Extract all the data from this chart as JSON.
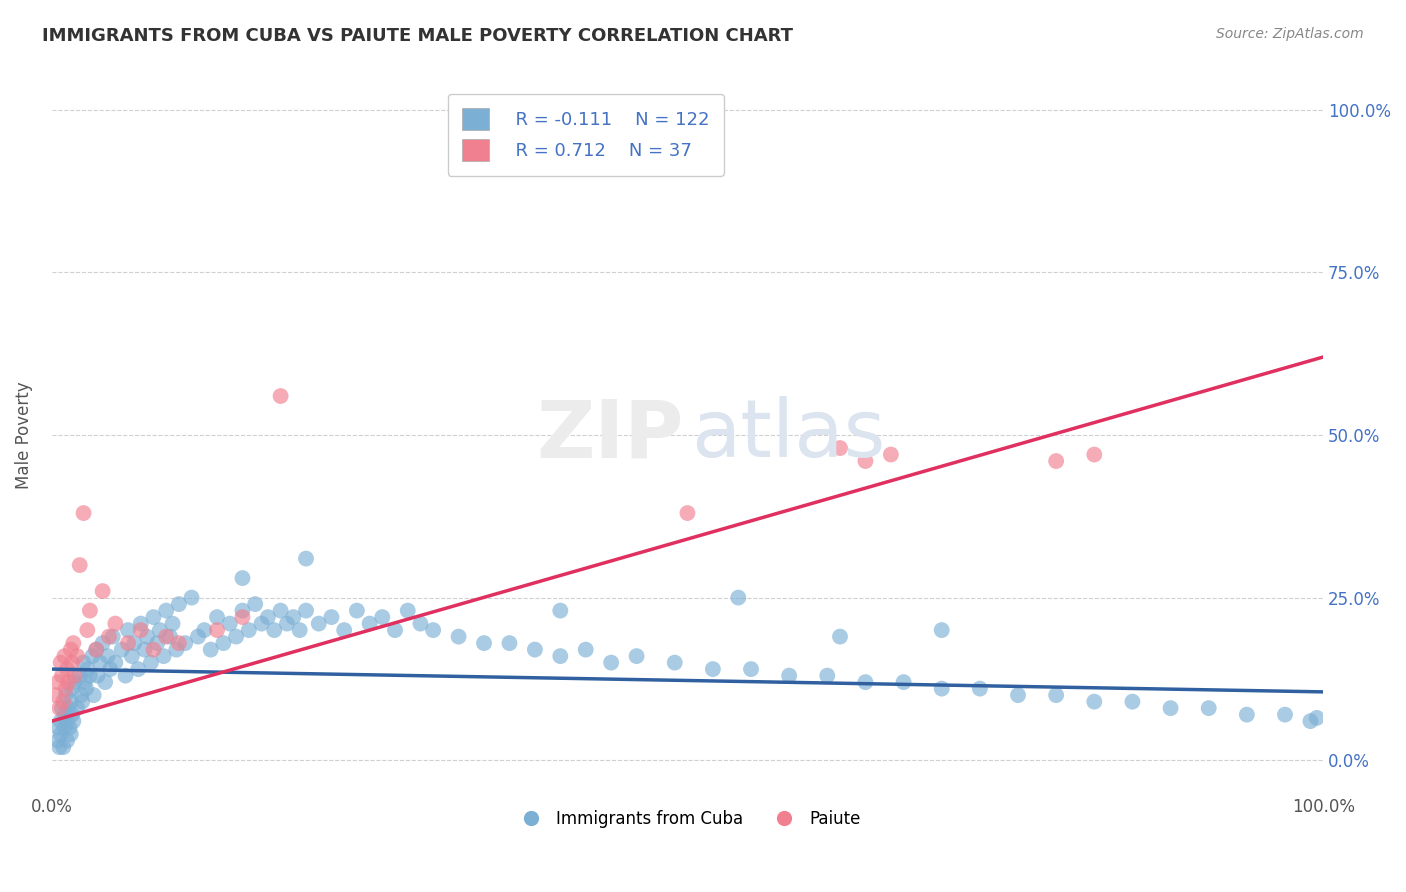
{
  "title": "IMMIGRANTS FROM CUBA VS PAIUTE MALE POVERTY CORRELATION CHART",
  "source": "Source: ZipAtlas.com",
  "ylabel": "Male Poverty",
  "xmin": 0.0,
  "xmax": 1.0,
  "ymin": -0.05,
  "ymax": 1.05,
  "ytick_positions": [
    0.0,
    0.25,
    0.5,
    0.75,
    1.0
  ],
  "ytick_labels": [
    "0.0%",
    "25.0%",
    "50.0%",
    "75.0%",
    "100.0%"
  ],
  "xtick_positions": [
    0.0,
    1.0
  ],
  "xtick_labels": [
    "0.0%",
    "100.0%"
  ],
  "blue_label": "Immigrants from Cuba",
  "pink_label": "Paiute",
  "blue_R": "-0.111",
  "blue_N": "122",
  "pink_R": "0.712",
  "pink_N": "37",
  "blue_color": "#7bafd4",
  "pink_color": "#f08090",
  "blue_line_color": "#3060a0",
  "pink_line_color": "#e03060",
  "grid_color": "#d0d0d0",
  "background_color": "#ffffff",
  "blue_scatter_x": [
    0.005,
    0.005,
    0.006,
    0.007,
    0.007,
    0.008,
    0.009,
    0.01,
    0.01,
    0.011,
    0.012,
    0.012,
    0.013,
    0.014,
    0.015,
    0.015,
    0.016,
    0.016,
    0.017,
    0.018,
    0.02,
    0.022,
    0.023,
    0.024,
    0.025,
    0.026,
    0.027,
    0.028,
    0.03,
    0.032,
    0.033,
    0.035,
    0.036,
    0.038,
    0.04,
    0.042,
    0.044,
    0.046,
    0.048,
    0.05,
    0.055,
    0.058,
    0.06,
    0.063,
    0.065,
    0.068,
    0.07,
    0.073,
    0.075,
    0.078,
    0.08,
    0.083,
    0.085,
    0.088,
    0.09,
    0.093,
    0.095,
    0.098,
    0.1,
    0.105,
    0.11,
    0.115,
    0.12,
    0.125,
    0.13,
    0.135,
    0.14,
    0.145,
    0.15,
    0.155,
    0.16,
    0.165,
    0.17,
    0.175,
    0.18,
    0.185,
    0.19,
    0.195,
    0.2,
    0.21,
    0.22,
    0.23,
    0.24,
    0.25,
    0.26,
    0.27,
    0.28,
    0.29,
    0.3,
    0.32,
    0.34,
    0.36,
    0.38,
    0.4,
    0.42,
    0.44,
    0.46,
    0.49,
    0.52,
    0.55,
    0.58,
    0.61,
    0.64,
    0.67,
    0.7,
    0.73,
    0.76,
    0.79,
    0.82,
    0.85,
    0.88,
    0.91,
    0.94,
    0.97,
    0.99,
    0.995,
    0.4,
    0.54,
    0.62,
    0.7,
    0.15,
    0.2
  ],
  "blue_scatter_y": [
    0.05,
    0.03,
    0.02,
    0.06,
    0.04,
    0.08,
    0.02,
    0.07,
    0.05,
    0.1,
    0.06,
    0.03,
    0.08,
    0.05,
    0.09,
    0.04,
    0.11,
    0.07,
    0.06,
    0.12,
    0.08,
    0.13,
    0.1,
    0.09,
    0.15,
    0.12,
    0.11,
    0.14,
    0.13,
    0.16,
    0.1,
    0.17,
    0.13,
    0.15,
    0.18,
    0.12,
    0.16,
    0.14,
    0.19,
    0.15,
    0.17,
    0.13,
    0.2,
    0.16,
    0.18,
    0.14,
    0.21,
    0.17,
    0.19,
    0.15,
    0.22,
    0.18,
    0.2,
    0.16,
    0.23,
    0.19,
    0.21,
    0.17,
    0.24,
    0.18,
    0.25,
    0.19,
    0.2,
    0.17,
    0.22,
    0.18,
    0.21,
    0.19,
    0.23,
    0.2,
    0.24,
    0.21,
    0.22,
    0.2,
    0.23,
    0.21,
    0.22,
    0.2,
    0.23,
    0.21,
    0.22,
    0.2,
    0.23,
    0.21,
    0.22,
    0.2,
    0.23,
    0.21,
    0.2,
    0.19,
    0.18,
    0.18,
    0.17,
    0.16,
    0.17,
    0.15,
    0.16,
    0.15,
    0.14,
    0.14,
    0.13,
    0.13,
    0.12,
    0.12,
    0.11,
    0.11,
    0.1,
    0.1,
    0.09,
    0.09,
    0.08,
    0.08,
    0.07,
    0.07,
    0.06,
    0.065,
    0.23,
    0.25,
    0.19,
    0.2,
    0.28,
    0.31
  ],
  "pink_scatter_x": [
    0.003,
    0.005,
    0.006,
    0.007,
    0.008,
    0.009,
    0.01,
    0.011,
    0.012,
    0.013,
    0.015,
    0.016,
    0.017,
    0.018,
    0.02,
    0.022,
    0.025,
    0.028,
    0.03,
    0.035,
    0.04,
    0.045,
    0.05,
    0.06,
    0.07,
    0.08,
    0.09,
    0.1,
    0.13,
    0.15,
    0.18,
    0.5,
    0.62,
    0.64,
    0.66,
    0.79,
    0.82
  ],
  "pink_scatter_y": [
    0.1,
    0.12,
    0.08,
    0.15,
    0.13,
    0.09,
    0.16,
    0.11,
    0.14,
    0.12,
    0.17,
    0.15,
    0.18,
    0.13,
    0.16,
    0.3,
    0.38,
    0.2,
    0.23,
    0.17,
    0.26,
    0.19,
    0.21,
    0.18,
    0.2,
    0.17,
    0.19,
    0.18,
    0.2,
    0.22,
    0.56,
    0.38,
    0.48,
    0.46,
    0.47,
    0.46,
    0.47
  ],
  "blue_line_x": [
    0.0,
    1.0
  ],
  "blue_line_y": [
    0.14,
    0.105
  ],
  "pink_line_x": [
    0.0,
    1.0
  ],
  "pink_line_y": [
    0.06,
    0.62
  ]
}
